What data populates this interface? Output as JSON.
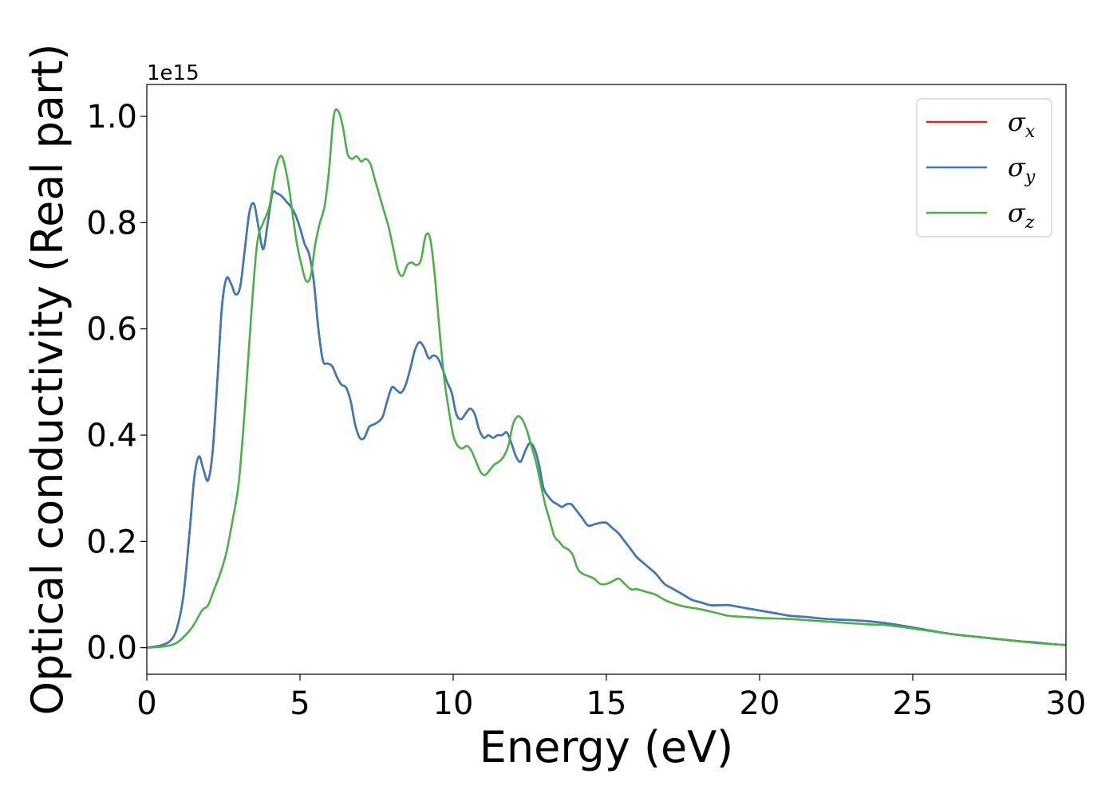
{
  "chart_data": {
    "type": "line",
    "xlabel": "Energy (eV)",
    "ylabel": "Optical conductivity (Real part)",
    "scale_offset_label": "1e15",
    "xlim": [
      0,
      30
    ],
    "ylim": [
      -0.05,
      1.06
    ],
    "xticks": [
      0,
      5,
      10,
      15,
      20,
      25,
      30
    ],
    "yticks": [
      0.0,
      0.2,
      0.4,
      0.6,
      0.8,
      1.0
    ],
    "xtick_labels": [
      "0",
      "5",
      "10",
      "15",
      "20",
      "25",
      "30"
    ],
    "ytick_labels": [
      "0.0",
      "0.2",
      "0.4",
      "0.6",
      "0.8",
      "1.0"
    ],
    "grid": false,
    "legend_position": "top-right",
    "series": [
      {
        "name": "σx",
        "color": "#d62728",
        "x": [
          0,
          0.5,
          0.8,
          1.0,
          1.2,
          1.4,
          1.55,
          1.7,
          1.85,
          2.0,
          2.15,
          2.3,
          2.45,
          2.6,
          2.75,
          2.9,
          3.05,
          3.2,
          3.35,
          3.5,
          3.65,
          3.8,
          3.95,
          4.1,
          4.25,
          4.4,
          4.55,
          4.7,
          4.85,
          5.0,
          5.15,
          5.3,
          5.45,
          5.6,
          5.75,
          5.9,
          6.05,
          6.2,
          6.35,
          6.5,
          6.65,
          6.8,
          6.95,
          7.1,
          7.25,
          7.4,
          7.55,
          7.7,
          7.85,
          8.0,
          8.15,
          8.3,
          8.45,
          8.6,
          8.75,
          8.9,
          9.05,
          9.2,
          9.35,
          9.5,
          9.65,
          9.8,
          9.95,
          10.1,
          10.25,
          10.4,
          10.55,
          10.7,
          10.85,
          11.0,
          11.15,
          11.3,
          11.45,
          11.6,
          11.75,
          11.9,
          12.05,
          12.2,
          12.35,
          12.5,
          12.65,
          12.8,
          12.95,
          13.1,
          13.25,
          13.4,
          13.55,
          13.7,
          13.85,
          14.0,
          14.2,
          14.4,
          14.6,
          14.8,
          15.0,
          15.2,
          15.4,
          15.6,
          15.8,
          16.0,
          16.3,
          16.6,
          16.9,
          17.2,
          17.5,
          17.8,
          18.1,
          18.4,
          18.7,
          19.0,
          19.5,
          20.0,
          20.5,
          21.0,
          21.5,
          22.0,
          22.5,
          23.0,
          23.5,
          24.0,
          24.5,
          25.0,
          25.5,
          26.0,
          26.5,
          27.0,
          27.5,
          28.0,
          28.5,
          29.0,
          29.5,
          30.0
        ],
        "y": [
          0,
          0.005,
          0.015,
          0.04,
          0.1,
          0.22,
          0.32,
          0.36,
          0.335,
          0.315,
          0.37,
          0.5,
          0.64,
          0.695,
          0.685,
          0.665,
          0.68,
          0.75,
          0.82,
          0.835,
          0.79,
          0.75,
          0.8,
          0.855,
          0.855,
          0.85,
          0.84,
          0.83,
          0.815,
          0.79,
          0.76,
          0.74,
          0.69,
          0.6,
          0.54,
          0.535,
          0.53,
          0.51,
          0.495,
          0.49,
          0.465,
          0.42,
          0.395,
          0.395,
          0.415,
          0.42,
          0.425,
          0.435,
          0.465,
          0.49,
          0.485,
          0.48,
          0.495,
          0.525,
          0.56,
          0.575,
          0.565,
          0.545,
          0.55,
          0.545,
          0.525,
          0.5,
          0.48,
          0.44,
          0.43,
          0.44,
          0.45,
          0.44,
          0.41,
          0.395,
          0.4,
          0.395,
          0.4,
          0.4,
          0.405,
          0.385,
          0.36,
          0.35,
          0.37,
          0.385,
          0.375,
          0.345,
          0.3,
          0.285,
          0.275,
          0.27,
          0.265,
          0.27,
          0.27,
          0.26,
          0.245,
          0.23,
          0.232,
          0.235,
          0.235,
          0.225,
          0.215,
          0.2,
          0.185,
          0.17,
          0.155,
          0.14,
          0.12,
          0.11,
          0.1,
          0.09,
          0.085,
          0.08,
          0.08,
          0.08,
          0.075,
          0.07,
          0.065,
          0.06,
          0.058,
          0.055,
          0.053,
          0.052,
          0.05,
          0.047,
          0.043,
          0.038,
          0.033,
          0.028,
          0.024,
          0.021,
          0.018,
          0.015,
          0.012,
          0.01,
          0.007,
          0.005
        ]
      },
      {
        "name": "σy",
        "color": "#3a7ab8",
        "x": [
          0,
          0.5,
          0.8,
          1.0,
          1.2,
          1.4,
          1.55,
          1.7,
          1.85,
          2.0,
          2.15,
          2.3,
          2.45,
          2.6,
          2.75,
          2.9,
          3.05,
          3.2,
          3.35,
          3.5,
          3.65,
          3.8,
          3.95,
          4.1,
          4.25,
          4.4,
          4.55,
          4.7,
          4.85,
          5.0,
          5.15,
          5.3,
          5.45,
          5.6,
          5.75,
          5.9,
          6.05,
          6.2,
          6.35,
          6.5,
          6.65,
          6.8,
          6.95,
          7.1,
          7.25,
          7.4,
          7.55,
          7.7,
          7.85,
          8.0,
          8.15,
          8.3,
          8.45,
          8.6,
          8.75,
          8.9,
          9.05,
          9.2,
          9.35,
          9.5,
          9.65,
          9.8,
          9.95,
          10.1,
          10.25,
          10.4,
          10.55,
          10.7,
          10.85,
          11.0,
          11.15,
          11.3,
          11.45,
          11.6,
          11.75,
          11.9,
          12.05,
          12.2,
          12.35,
          12.5,
          12.65,
          12.8,
          12.95,
          13.1,
          13.25,
          13.4,
          13.55,
          13.7,
          13.85,
          14.0,
          14.2,
          14.4,
          14.6,
          14.8,
          15.0,
          15.2,
          15.4,
          15.6,
          15.8,
          16.0,
          16.3,
          16.6,
          16.9,
          17.2,
          17.5,
          17.8,
          18.1,
          18.4,
          18.7,
          19.0,
          19.5,
          20.0,
          20.5,
          21.0,
          21.5,
          22.0,
          22.5,
          23.0,
          23.5,
          24.0,
          24.5,
          25.0,
          25.5,
          26.0,
          26.5,
          27.0,
          27.5,
          28.0,
          28.5,
          29.0,
          29.5,
          30.0
        ],
        "y": [
          0,
          0.005,
          0.015,
          0.04,
          0.1,
          0.22,
          0.32,
          0.36,
          0.335,
          0.315,
          0.37,
          0.5,
          0.64,
          0.695,
          0.685,
          0.665,
          0.68,
          0.75,
          0.82,
          0.835,
          0.79,
          0.75,
          0.8,
          0.855,
          0.855,
          0.85,
          0.84,
          0.83,
          0.815,
          0.79,
          0.76,
          0.74,
          0.69,
          0.6,
          0.54,
          0.535,
          0.53,
          0.51,
          0.495,
          0.49,
          0.465,
          0.42,
          0.395,
          0.395,
          0.415,
          0.42,
          0.425,
          0.435,
          0.465,
          0.49,
          0.485,
          0.48,
          0.495,
          0.525,
          0.56,
          0.575,
          0.565,
          0.545,
          0.55,
          0.545,
          0.525,
          0.5,
          0.48,
          0.44,
          0.43,
          0.44,
          0.45,
          0.44,
          0.41,
          0.395,
          0.4,
          0.395,
          0.4,
          0.4,
          0.405,
          0.385,
          0.36,
          0.35,
          0.37,
          0.385,
          0.375,
          0.345,
          0.3,
          0.285,
          0.275,
          0.27,
          0.265,
          0.27,
          0.27,
          0.26,
          0.245,
          0.23,
          0.232,
          0.235,
          0.235,
          0.225,
          0.215,
          0.2,
          0.185,
          0.17,
          0.155,
          0.14,
          0.12,
          0.11,
          0.1,
          0.09,
          0.085,
          0.08,
          0.08,
          0.08,
          0.075,
          0.07,
          0.065,
          0.06,
          0.058,
          0.055,
          0.053,
          0.052,
          0.05,
          0.047,
          0.043,
          0.038,
          0.033,
          0.028,
          0.024,
          0.021,
          0.018,
          0.015,
          0.012,
          0.01,
          0.007,
          0.005
        ]
      },
      {
        "name": "σz",
        "color": "#4daf4a",
        "x": [
          0,
          0.5,
          0.8,
          1.0,
          1.2,
          1.5,
          1.8,
          2.0,
          2.2,
          2.4,
          2.6,
          2.8,
          3.0,
          3.2,
          3.4,
          3.6,
          3.8,
          4.0,
          4.2,
          4.4,
          4.6,
          4.75,
          4.9,
          5.05,
          5.2,
          5.35,
          5.5,
          5.65,
          5.8,
          5.95,
          6.1,
          6.25,
          6.4,
          6.55,
          6.7,
          6.85,
          7.0,
          7.15,
          7.3,
          7.45,
          7.6,
          7.75,
          7.9,
          8.05,
          8.2,
          8.35,
          8.5,
          8.65,
          8.8,
          8.95,
          9.1,
          9.25,
          9.4,
          9.55,
          9.7,
          9.85,
          10.0,
          10.15,
          10.3,
          10.45,
          10.6,
          10.75,
          10.9,
          11.05,
          11.2,
          11.35,
          11.5,
          11.65,
          11.8,
          11.95,
          12.1,
          12.25,
          12.4,
          12.55,
          12.7,
          12.85,
          13.0,
          13.15,
          13.3,
          13.45,
          13.6,
          13.75,
          13.9,
          14.05,
          14.2,
          14.4,
          14.6,
          14.8,
          15.0,
          15.2,
          15.4,
          15.6,
          15.8,
          16.0,
          16.3,
          16.6,
          16.9,
          17.2,
          17.5,
          17.8,
          18.1,
          18.4,
          18.7,
          19.0,
          19.5,
          20.0,
          20.5,
          21.0,
          21.5,
          22.0,
          22.5,
          23.0,
          23.5,
          24.0,
          24.5,
          25.0,
          25.5,
          26.0,
          26.5,
          27.0,
          27.5,
          28.0,
          28.5,
          29.0,
          29.5,
          30.0
        ],
        "y": [
          0,
          0.002,
          0.005,
          0.01,
          0.02,
          0.04,
          0.07,
          0.08,
          0.11,
          0.14,
          0.18,
          0.24,
          0.31,
          0.45,
          0.62,
          0.76,
          0.8,
          0.83,
          0.9,
          0.925,
          0.88,
          0.82,
          0.76,
          0.72,
          0.69,
          0.7,
          0.76,
          0.8,
          0.83,
          0.9,
          1.0,
          1.01,
          0.98,
          0.93,
          0.92,
          0.925,
          0.915,
          0.92,
          0.91,
          0.88,
          0.85,
          0.82,
          0.79,
          0.75,
          0.71,
          0.7,
          0.72,
          0.725,
          0.72,
          0.73,
          0.775,
          0.77,
          0.7,
          0.6,
          0.51,
          0.45,
          0.4,
          0.38,
          0.375,
          0.38,
          0.37,
          0.35,
          0.33,
          0.325,
          0.335,
          0.345,
          0.35,
          0.36,
          0.38,
          0.42,
          0.435,
          0.43,
          0.41,
          0.38,
          0.35,
          0.31,
          0.27,
          0.24,
          0.21,
          0.2,
          0.19,
          0.185,
          0.175,
          0.15,
          0.14,
          0.135,
          0.13,
          0.12,
          0.12,
          0.125,
          0.13,
          0.12,
          0.11,
          0.11,
          0.105,
          0.1,
          0.09,
          0.083,
          0.078,
          0.075,
          0.072,
          0.068,
          0.064,
          0.06,
          0.058,
          0.056,
          0.055,
          0.054,
          0.052,
          0.05,
          0.048,
          0.046,
          0.044,
          0.043,
          0.04,
          0.036,
          0.032,
          0.028,
          0.024,
          0.021,
          0.018,
          0.015,
          0.012,
          0.009,
          0.007,
          0.005
        ]
      }
    ]
  }
}
